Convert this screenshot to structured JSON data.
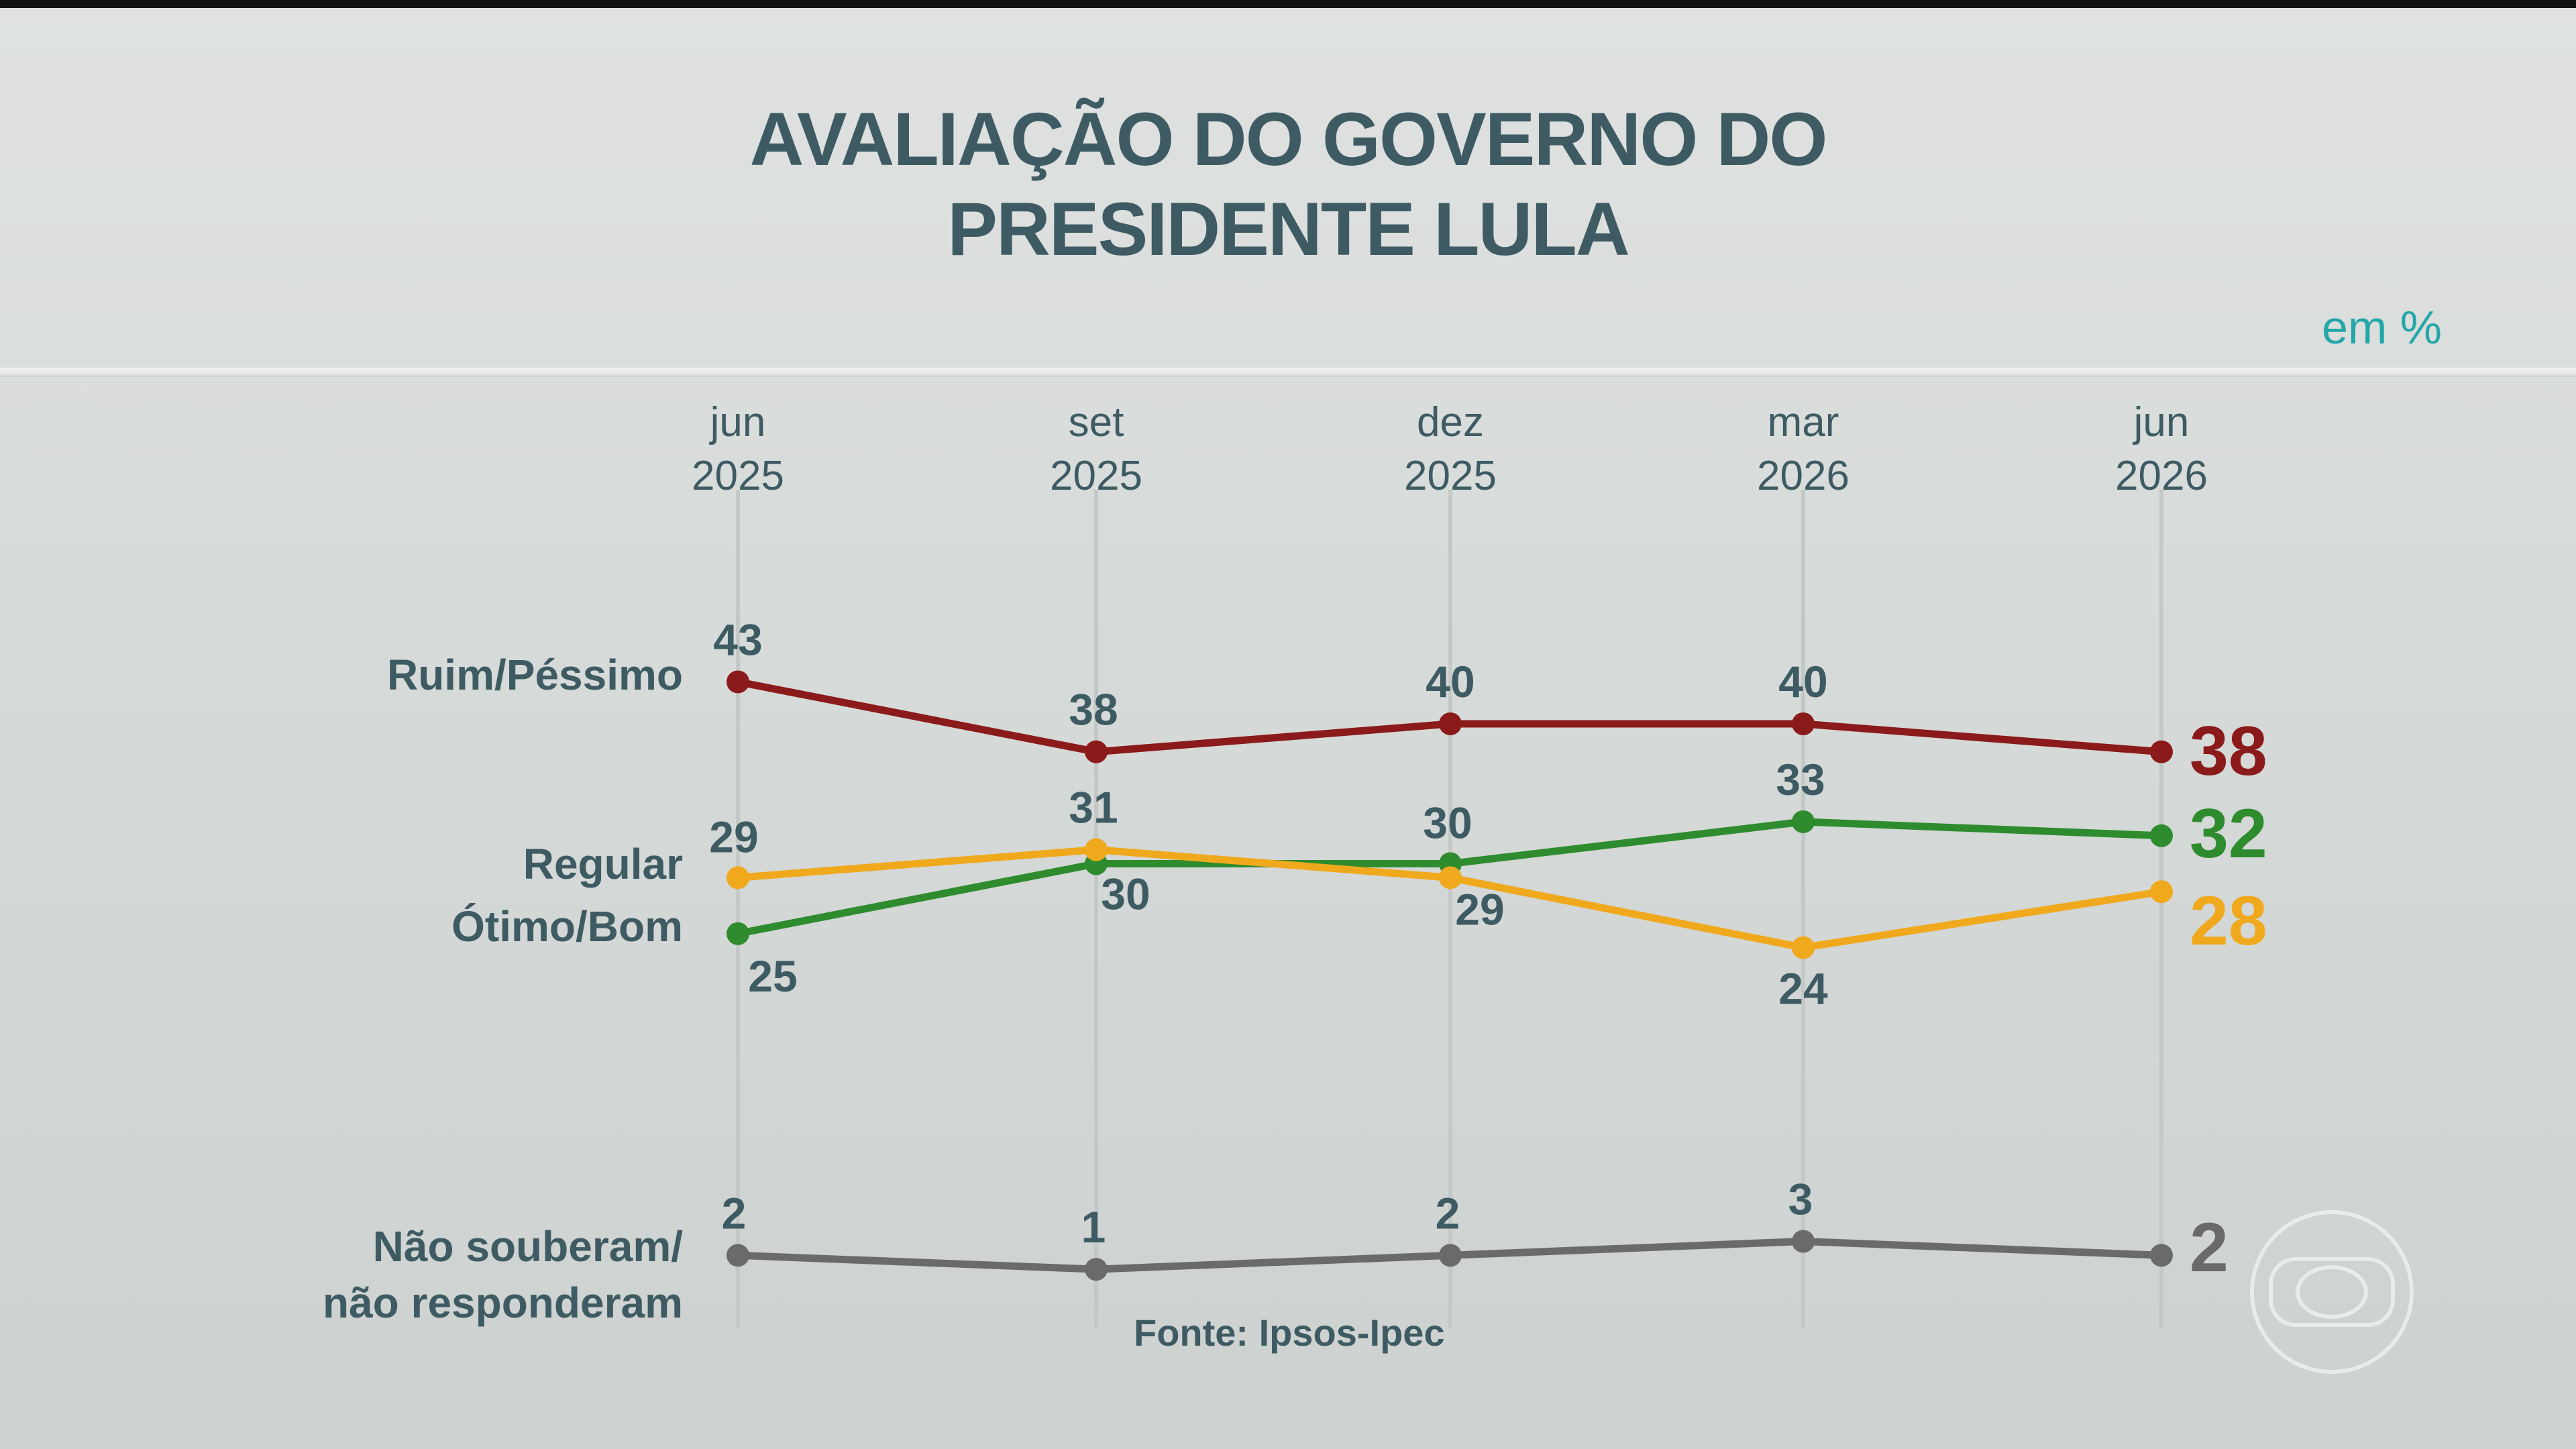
{
  "title": {
    "line1": "AVALIAÇÃO DO GOVERNO DO",
    "line2": "PRESIDENTE LULA"
  },
  "unit": "em %",
  "source": "Fonte: Ipsos-Ipec",
  "colors": {
    "title": "#3e5b63",
    "unit": "#24a7a8",
    "ruim": "#8b1a1a",
    "regular": "#f0a91c",
    "otimo": "#2e8b2e",
    "nao": "#6a6a6a"
  },
  "chart_data": {
    "type": "line",
    "title": "AVALIAÇÃO DO GOVERNO DO PRESIDENTE LULA",
    "ylabel": "em %",
    "grid": "vertical",
    "categories": [
      {
        "month": "jun",
        "year": "2025"
      },
      {
        "month": "set",
        "year": "2025"
      },
      {
        "month": "dez",
        "year": "2025"
      },
      {
        "month": "mar",
        "year": "2026"
      },
      {
        "month": "jun",
        "year": "2026"
      }
    ],
    "series": [
      {
        "key": "ruim",
        "name": "Ruim/Péssimo",
        "color": "#8b1a1a",
        "values": [
          43,
          38,
          40,
          40,
          38
        ]
      },
      {
        "key": "regular",
        "name": "Regular",
        "color": "#f0a91c",
        "values": [
          29,
          31,
          29,
          24,
          28
        ]
      },
      {
        "key": "otimo",
        "name": "Ótimo/Bom",
        "color": "#2e8b2e",
        "values": [
          25,
          30,
          30,
          33,
          32
        ]
      },
      {
        "key": "nao",
        "name": "Não souberam/ não responderam",
        "name_lines": [
          "Não souberam/",
          "não responderam"
        ],
        "color": "#6a6a6a",
        "values": [
          2,
          1,
          2,
          3,
          2
        ]
      }
    ]
  }
}
